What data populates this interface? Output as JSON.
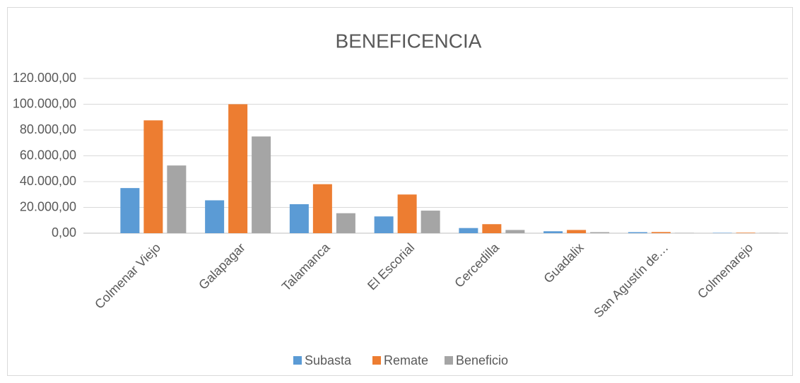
{
  "chart_data": {
    "type": "bar",
    "title": "BENEFICENCIA",
    "categories": [
      "Colmenar Viejo",
      "Galapagar",
      "Talamanca",
      "El Escorial",
      "Cercedilla",
      "Guadalix",
      "San Agustín de…",
      "Colmenarejo"
    ],
    "series": [
      {
        "name": "Subasta",
        "color": "#5b9bd5",
        "values": [
          35000,
          25500,
          22500,
          13000,
          4000,
          1500,
          800,
          300
        ]
      },
      {
        "name": "Remate",
        "color": "#ed7d31",
        "values": [
          87500,
          100000,
          38000,
          30000,
          7000,
          2500,
          900,
          400
        ]
      },
      {
        "name": "Beneficio",
        "color": "#a5a5a5",
        "values": [
          52500,
          75000,
          15500,
          17500,
          2500,
          800,
          300,
          300
        ]
      }
    ],
    "ylim": [
      0,
      120000
    ],
    "yticks": [
      {
        "value": 0,
        "label": "0,00"
      },
      {
        "value": 20000,
        "label": "20.000,00"
      },
      {
        "value": 40000,
        "label": "40.000,00"
      },
      {
        "value": 60000,
        "label": "60.000,00"
      },
      {
        "value": 80000,
        "label": "80.000,00"
      },
      {
        "value": 100000,
        "label": "100.000,00"
      },
      {
        "value": 120000,
        "label": "120.000,00"
      }
    ],
    "grid": true,
    "legend": "bottom"
  }
}
